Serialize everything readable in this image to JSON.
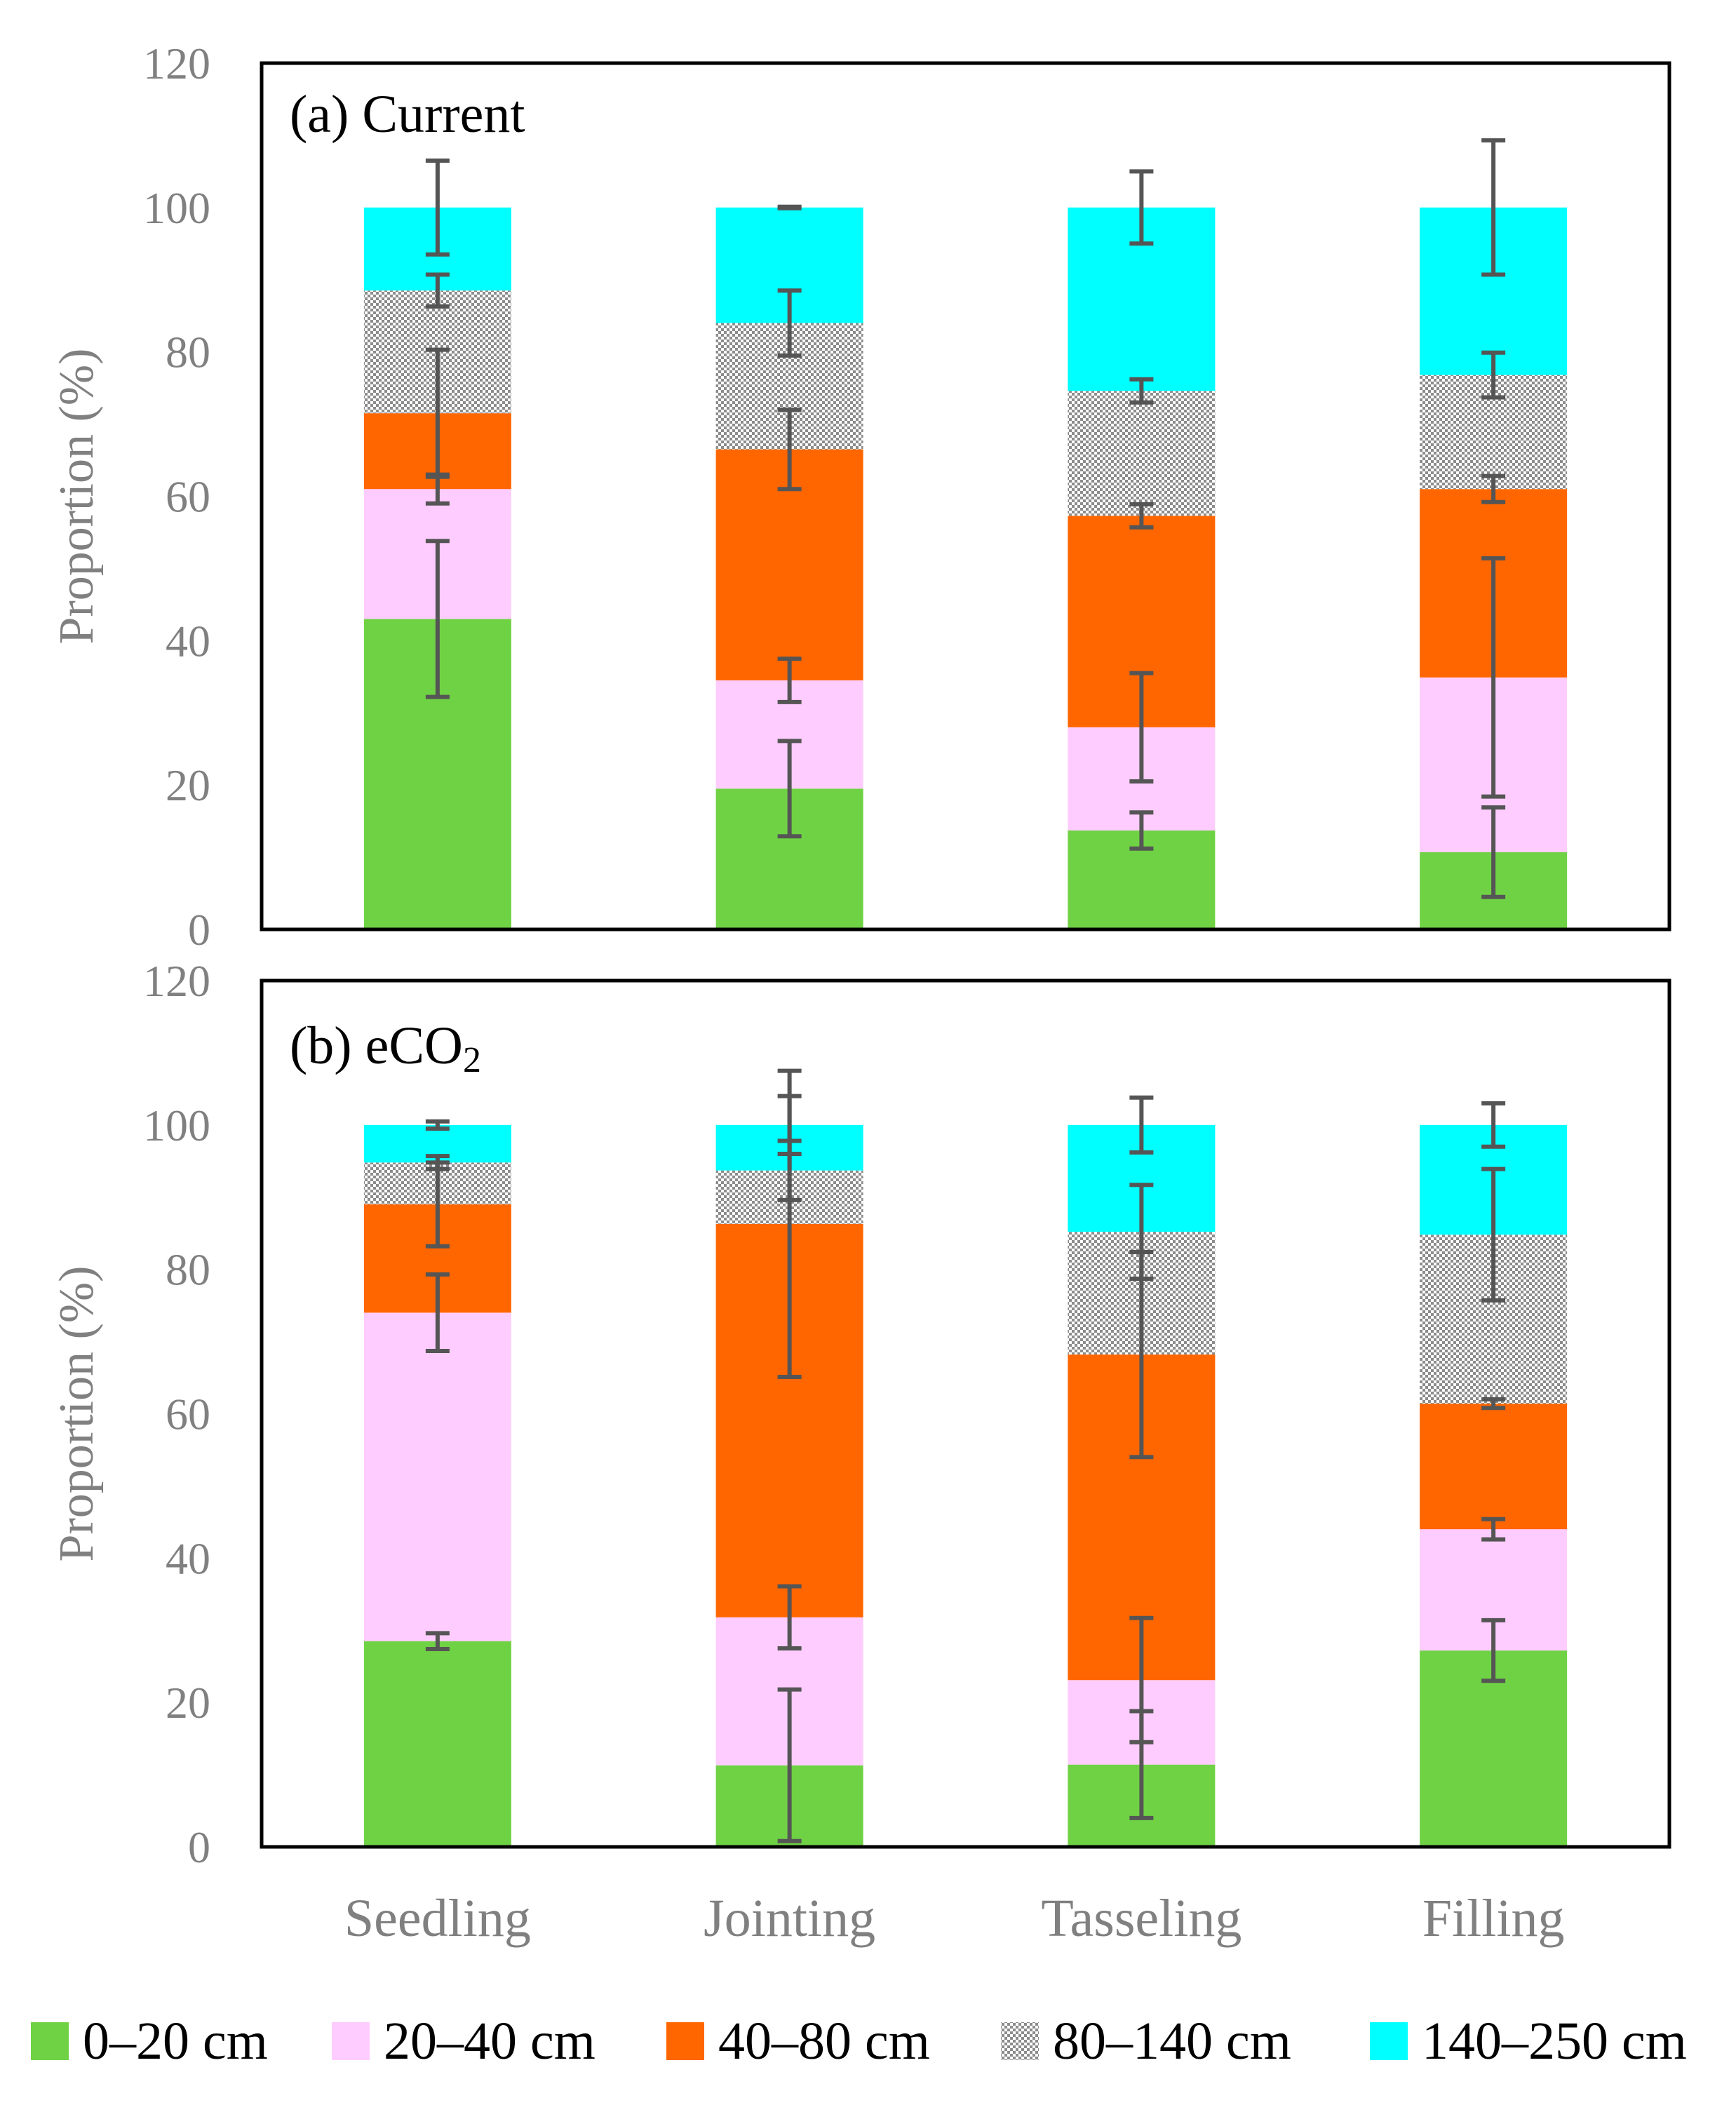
{
  "chart_data": [
    {
      "type": "bar",
      "stacked": true,
      "title": "(a) Current",
      "ylabel": "Proportion (%)",
      "xlabel": "",
      "ylim": [
        0,
        120
      ],
      "yticks": [
        "0",
        "20",
        "40",
        "60",
        "80",
        "100",
        "120"
      ],
      "categories": [
        "Seedling",
        "Jointing",
        "Tasseling",
        "Filling"
      ],
      "series": [
        {
          "name": "0–20 cm",
          "values": [
            43,
            19.5,
            13.7,
            10.7
          ],
          "errors": [
            10.8,
            6.6,
            2.5,
            6.2
          ]
        },
        {
          "name": "20–40 cm",
          "values": [
            18,
            15,
            14.3,
            24.2
          ],
          "errors": [
            2.0,
            3.0,
            7.5,
            16.5
          ]
        },
        {
          "name": "40–80 cm",
          "values": [
            10.5,
            32,
            29.3,
            26.1
          ],
          "errors": [
            8.8,
            5.5,
            1.6,
            1.8
          ]
        },
        {
          "name": "80–140 cm",
          "values": [
            17,
            17.5,
            17.3,
            15.8
          ],
          "errors": [
            2.2,
            4.5,
            1.6,
            3.1
          ]
        },
        {
          "name": "140–250 cm",
          "values": [
            11.5,
            16,
            25.4,
            23.2
          ],
          "errors": [
            6.5,
            0.1,
            5.0,
            9.3
          ]
        }
      ]
    },
    {
      "type": "bar",
      "stacked": true,
      "title": "(b) eCO",
      "title_subscript": "2",
      "ylabel": "Proportion (%)",
      "xlabel": "",
      "ylim": [
        0,
        120
      ],
      "yticks": [
        "0",
        "20",
        "40",
        "60",
        "80",
        "100",
        "120"
      ],
      "categories": [
        "Seedling",
        "Jointing",
        "Tasseling",
        "Filling"
      ],
      "series": [
        {
          "name": "0–20 cm",
          "values": [
            28.5,
            11.3,
            11.4,
            27.2
          ],
          "errors": [
            1.1,
            10.5,
            7.4,
            4.2
          ]
        },
        {
          "name": "20–40 cm",
          "values": [
            45.5,
            20.5,
            11.7,
            16.8
          ],
          "errors": [
            5.3,
            4.3,
            8.6,
            1.4
          ]
        },
        {
          "name": "40–80 cm",
          "values": [
            15,
            54.5,
            45.1,
            17.4
          ],
          "errors": [
            5.8,
            21.2,
            14.2,
            0.6
          ]
        },
        {
          "name": "80–140 cm",
          "values": [
            5.8,
            7.4,
            17.0,
            23.4
          ],
          "errors": [
            0.9,
            4.1,
            6.5,
            9.1
          ]
        },
        {
          "name": "140–250 cm",
          "values": [
            5.2,
            6.3,
            14.8,
            15.2
          ],
          "errors": [
            0.5,
            4.0,
            3.8,
            3.0
          ]
        }
      ]
    }
  ],
  "legend": {
    "placement": "bottom",
    "entries": [
      {
        "label": "0–20 cm",
        "color": "#6fd244",
        "pattern": false
      },
      {
        "label": "20–40 cm",
        "color": "#ffccff",
        "pattern": false
      },
      {
        "label": "40–80 cm",
        "color": "#ff6600",
        "pattern": false
      },
      {
        "label": "80–140 cm",
        "color": "#a6a6a6",
        "pattern": true
      },
      {
        "label": "140–250 cm",
        "color": "#00ffff",
        "pattern": false
      }
    ]
  }
}
